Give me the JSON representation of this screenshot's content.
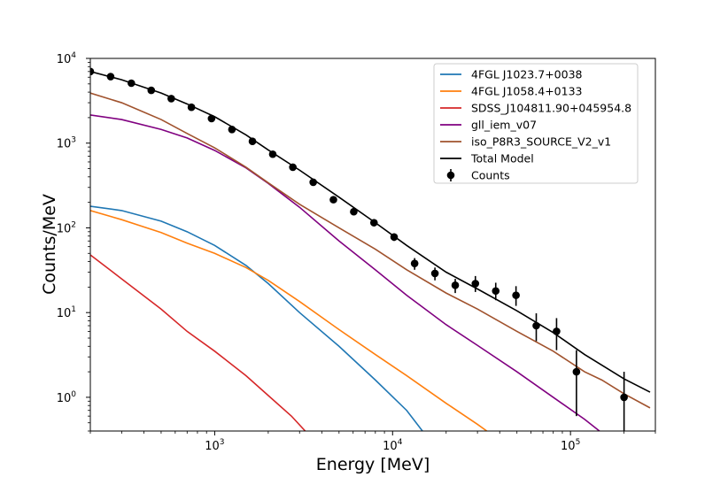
{
  "chart_data": {
    "type": "line",
    "xscale": "log",
    "yscale": "log",
    "xlabel": "Energy [MeV]",
    "ylabel": "Counts/MeV",
    "xlim": [
      200,
      300000
    ],
    "ylim": [
      0.4,
      10000
    ],
    "x_ticks": [
      {
        "value": 1000,
        "base": "10",
        "exp": "3"
      },
      {
        "value": 10000,
        "base": "10",
        "exp": "4"
      },
      {
        "value": 100000,
        "base": "10",
        "exp": "5"
      }
    ],
    "y_ticks": [
      {
        "value": 1,
        "base": "10",
        "exp": "0"
      },
      {
        "value": 10,
        "base": "10",
        "exp": "1"
      },
      {
        "value": 100,
        "base": "10",
        "exp": "2"
      },
      {
        "value": 1000,
        "base": "10",
        "exp": "3"
      },
      {
        "value": 10000,
        "base": "10",
        "exp": "4"
      }
    ],
    "legend_position": "top-right",
    "series": [
      {
        "name": "4FGL J1023.7+0038",
        "color": "#1f77b4",
        "points": [
          [
            200,
            180
          ],
          [
            300,
            160
          ],
          [
            500,
            120
          ],
          [
            700,
            90
          ],
          [
            1000,
            62
          ],
          [
            1500,
            36
          ],
          [
            2000,
            22
          ],
          [
            3000,
            10
          ],
          [
            5000,
            4
          ],
          [
            8000,
            1.6
          ],
          [
            12000,
            0.7
          ],
          [
            15000,
            0.38
          ]
        ]
      },
      {
        "name": "4FGL J1058.4+0133",
        "color": "#ff7f0e",
        "points": [
          [
            200,
            160
          ],
          [
            300,
            125
          ],
          [
            500,
            88
          ],
          [
            700,
            66
          ],
          [
            1000,
            50
          ],
          [
            1500,
            34
          ],
          [
            2000,
            24
          ],
          [
            3000,
            13.5
          ],
          [
            5000,
            6.3
          ],
          [
            8000,
            3.2
          ],
          [
            12000,
            1.8
          ],
          [
            20000,
            0.85
          ],
          [
            30000,
            0.48
          ],
          [
            35000,
            0.38
          ]
        ]
      },
      {
        "name": "SDSS_J104811.90+045954.8",
        "color": "#d62728",
        "points": [
          [
            200,
            48
          ],
          [
            300,
            25
          ],
          [
            500,
            11
          ],
          [
            700,
            6
          ],
          [
            1000,
            3.5
          ],
          [
            1500,
            1.8
          ],
          [
            2000,
            1.05
          ],
          [
            2700,
            0.6
          ],
          [
            3300,
            0.38
          ]
        ]
      },
      {
        "name": "gll_iem_v07",
        "color": "#800080",
        "points": [
          [
            200,
            2150
          ],
          [
            300,
            1900
          ],
          [
            500,
            1450
          ],
          [
            700,
            1150
          ],
          [
            1000,
            820
          ],
          [
            1500,
            510
          ],
          [
            2000,
            335
          ],
          [
            3000,
            175
          ],
          [
            5000,
            70
          ],
          [
            8000,
            32
          ],
          [
            12000,
            16
          ],
          [
            20000,
            7.2
          ],
          [
            30000,
            4.1
          ],
          [
            50000,
            2
          ],
          [
            80000,
            1
          ],
          [
            120000,
            0.55
          ],
          [
            150000,
            0.38
          ]
        ]
      },
      {
        "name": "iso_P8R3_SOURCE_V2_v1",
        "color": "#a0522d",
        "points": [
          [
            200,
            3900
          ],
          [
            300,
            3000
          ],
          [
            500,
            1900
          ],
          [
            700,
            1300
          ],
          [
            1000,
            880
          ],
          [
            1500,
            520
          ],
          [
            2000,
            340
          ],
          [
            3000,
            190
          ],
          [
            5000,
            100
          ],
          [
            8000,
            56
          ],
          [
            12000,
            32
          ],
          [
            20000,
            17
          ],
          [
            30000,
            11
          ],
          [
            50000,
            6
          ],
          [
            80000,
            3.5
          ],
          [
            120000,
            2
          ],
          [
            150000,
            1.6
          ],
          [
            200000,
            1.1
          ],
          [
            280000,
            0.75
          ]
        ]
      },
      {
        "name": "Total Model",
        "color": "#000000",
        "points": [
          [
            200,
            7000
          ],
          [
            300,
            5600
          ],
          [
            500,
            3900
          ],
          [
            700,
            2900
          ],
          [
            1000,
            2050
          ],
          [
            1500,
            1250
          ],
          [
            2000,
            830
          ],
          [
            3000,
            480
          ],
          [
            5000,
            230
          ],
          [
            8000,
            115
          ],
          [
            12000,
            62
          ],
          [
            20000,
            30
          ],
          [
            30000,
            19
          ],
          [
            50000,
            10.5
          ],
          [
            80000,
            5.8
          ],
          [
            120000,
            3.2
          ],
          [
            150000,
            2.4
          ],
          [
            200000,
            1.65
          ],
          [
            280000,
            1.15
          ]
        ]
      }
    ],
    "counts": {
      "name": "Counts",
      "color": "#000000",
      "points": [
        {
          "x": 200,
          "y": 7000,
          "lo": 6800,
          "hi": 7200
        },
        {
          "x": 260,
          "y": 6100,
          "lo": 5900,
          "hi": 6300
        },
        {
          "x": 340,
          "y": 5100,
          "lo": 4900,
          "hi": 5300
        },
        {
          "x": 440,
          "y": 4200,
          "lo": 4050,
          "hi": 4350
        },
        {
          "x": 570,
          "y": 3350,
          "lo": 3200,
          "hi": 3500
        },
        {
          "x": 740,
          "y": 2650,
          "lo": 2550,
          "hi": 2750
        },
        {
          "x": 960,
          "y": 1950,
          "lo": 1870,
          "hi": 2030
        },
        {
          "x": 1250,
          "y": 1450,
          "lo": 1390,
          "hi": 1510
        },
        {
          "x": 1630,
          "y": 1050,
          "lo": 1000,
          "hi": 1100
        },
        {
          "x": 2120,
          "y": 740,
          "lo": 705,
          "hi": 775
        },
        {
          "x": 2750,
          "y": 520,
          "lo": 495,
          "hi": 545
        },
        {
          "x": 3580,
          "y": 345,
          "lo": 325,
          "hi": 365
        },
        {
          "x": 4650,
          "y": 215,
          "lo": 200,
          "hi": 230
        },
        {
          "x": 6050,
          "y": 155,
          "lo": 143,
          "hi": 167
        },
        {
          "x": 7860,
          "y": 115,
          "lo": 105,
          "hi": 125
        },
        {
          "x": 10200,
          "y": 78,
          "lo": 70,
          "hi": 86
        },
        {
          "x": 13300,
          "y": 38,
          "lo": 32,
          "hi": 44
        },
        {
          "x": 17300,
          "y": 29,
          "lo": 24,
          "hi": 34
        },
        {
          "x": 22500,
          "y": 21,
          "lo": 17,
          "hi": 25
        },
        {
          "x": 29200,
          "y": 22,
          "lo": 17.5,
          "hi": 27
        },
        {
          "x": 38000,
          "y": 18,
          "lo": 14,
          "hi": 22.5
        },
        {
          "x": 49400,
          "y": 16,
          "lo": 12,
          "hi": 20.5
        },
        {
          "x": 64200,
          "y": 7,
          "lo": 4.6,
          "hi": 9.8
        },
        {
          "x": 83500,
          "y": 6,
          "lo": 3.6,
          "hi": 8.6
        },
        {
          "x": 108000,
          "y": 2,
          "lo": 0.6,
          "hi": 3.6
        },
        {
          "x": 200000,
          "y": 1,
          "lo": 0.3,
          "hi": 2.0
        }
      ]
    }
  }
}
